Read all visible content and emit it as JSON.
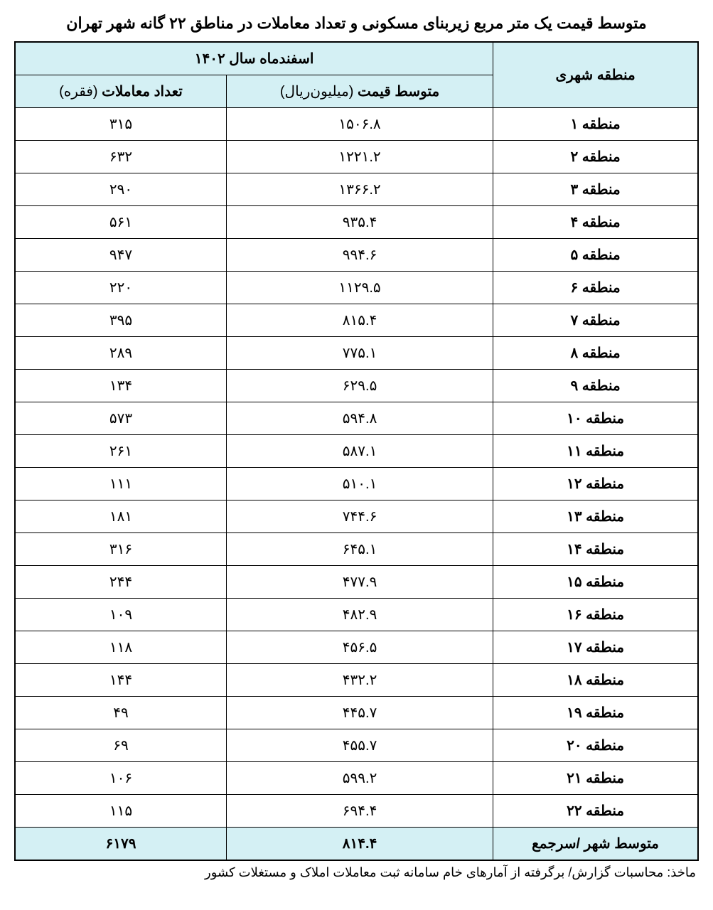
{
  "title": "متوسط قیمت یک متر مربع زیربنای مسکونی و تعداد معاملات در مناطق ۲۲ گانه شهر تهران",
  "header": {
    "region": "منطقه شهری",
    "period": "اسفندماه سال ۱۴۰۲",
    "avg_price_bold": "متوسط قیمت",
    "avg_price_unit": " (میلیون‌ریال)",
    "tx_count_bold": "تعداد معاملات",
    "tx_count_unit": " (فقره)"
  },
  "rows": [
    {
      "region": "منطقه ۱",
      "price": "۱۵۰۶.۸",
      "count": "۳۱۵"
    },
    {
      "region": "منطقه ۲",
      "price": "۱۲۲۱.۲",
      "count": "۶۳۲"
    },
    {
      "region": "منطقه ۳",
      "price": "۱۳۶۶.۲",
      "count": "۲۹۰"
    },
    {
      "region": "منطقه ۴",
      "price": "۹۳۵.۴",
      "count": "۵۶۱"
    },
    {
      "region": "منطقه ۵",
      "price": "۹۹۴.۶",
      "count": "۹۴۷"
    },
    {
      "region": "منطقه ۶",
      "price": "۱۱۲۹.۵",
      "count": "۲۲۰"
    },
    {
      "region": "منطقه ۷",
      "price": "۸۱۵.۴",
      "count": "۳۹۵"
    },
    {
      "region": "منطقه ۸",
      "price": "۷۷۵.۱",
      "count": "۲۸۹"
    },
    {
      "region": "منطقه ۹",
      "price": "۶۲۹.۵",
      "count": "۱۳۴"
    },
    {
      "region": "منطقه ۱۰",
      "price": "۵۹۴.۸",
      "count": "۵۷۳"
    },
    {
      "region": "منطقه ۱۱",
      "price": "۵۸۷.۱",
      "count": "۲۶۱"
    },
    {
      "region": "منطقه ۱۲",
      "price": "۵۱۰.۱",
      "count": "۱۱۱"
    },
    {
      "region": "منطقه ۱۳",
      "price": "۷۴۴.۶",
      "count": "۱۸۱"
    },
    {
      "region": "منطقه ۱۴",
      "price": "۶۴۵.۱",
      "count": "۳۱۶"
    },
    {
      "region": "منطقه ۱۵",
      "price": "۴۷۷.۹",
      "count": "۲۴۴"
    },
    {
      "region": "منطقه ۱۶",
      "price": "۴۸۲.۹",
      "count": "۱۰۹"
    },
    {
      "region": "منطقه ۱۷",
      "price": "۴۵۶.۵",
      "count": "۱۱۸"
    },
    {
      "region": "منطقه ۱۸",
      "price": "۴۳۲.۲",
      "count": "۱۴۴"
    },
    {
      "region": "منطقه ۱۹",
      "price": "۴۴۵.۷",
      "count": "۴۹"
    },
    {
      "region": "منطقه ۲۰",
      "price": "۴۵۵.۷",
      "count": "۶۹"
    },
    {
      "region": "منطقه ۲۱",
      "price": "۵۹۹.۲",
      "count": "۱۰۶"
    },
    {
      "region": "منطقه ۲۲",
      "price": "۶۹۴.۴",
      "count": "۱۱۵"
    }
  ],
  "total": {
    "label": "متوسط شهر /سرجمع",
    "price": "۸۱۴.۴",
    "count": "۶۱۷۹"
  },
  "source": "ماخذ: محاسبات گزارش/ برگرفته از آمارهای خام سامانه ثبت معاملات املاک و مستغلات کشور",
  "styling": {
    "type": "table",
    "header_bg": "#d4f0f4",
    "total_bg": "#d4f0f4",
    "border_color": "#000000",
    "text_color": "#000000",
    "background_color": "#ffffff",
    "title_fontsize": 22,
    "cell_fontsize": 20,
    "source_fontsize": 18,
    "column_widths_pct": [
      30,
      35,
      35
    ],
    "column_alignment": [
      "center",
      "center",
      "center"
    ]
  }
}
